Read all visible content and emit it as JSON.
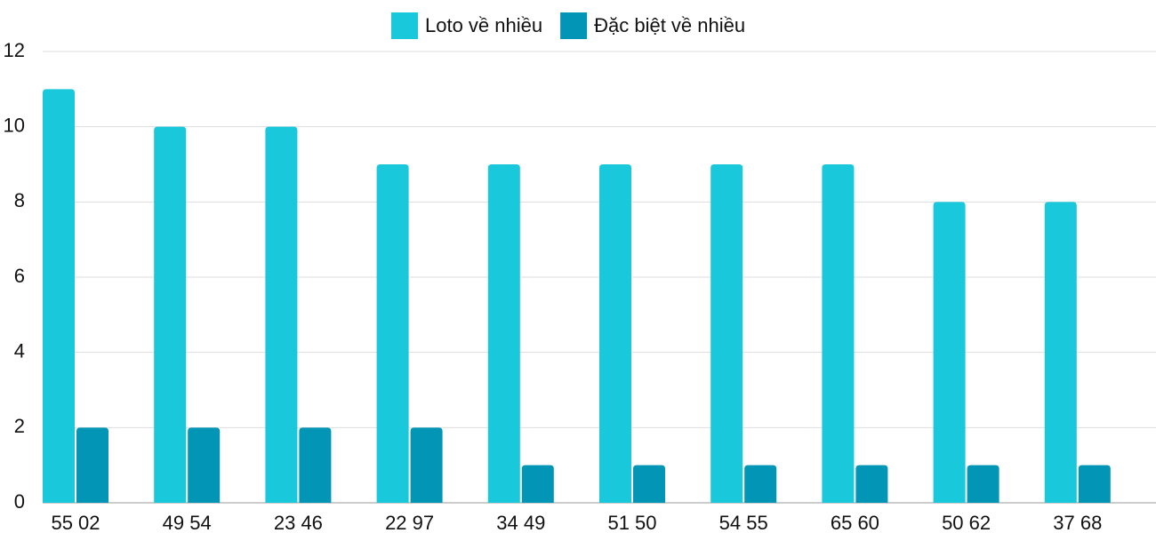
{
  "chart_data": {
    "type": "bar",
    "categories": [
      "55 02",
      "49 54",
      "23 46",
      "22 97",
      "34 49",
      "51 50",
      "54 55",
      "65 60",
      "50 62",
      "37 68"
    ],
    "series": [
      {
        "name": "Loto về nhiều",
        "color": "#1ac8dc",
        "values": [
          11,
          10,
          10,
          9,
          9,
          9,
          9,
          9,
          8,
          8
        ]
      },
      {
        "name": "Đặc biệt về nhiều",
        "color": "#0295b6",
        "values": [
          2,
          2,
          2,
          2,
          1,
          1,
          1,
          1,
          1,
          1
        ]
      }
    ],
    "ylim": [
      0,
      12
    ],
    "yticks": [
      0,
      2,
      4,
      6,
      8,
      10,
      12
    ],
    "grid": true,
    "legend": "top"
  }
}
